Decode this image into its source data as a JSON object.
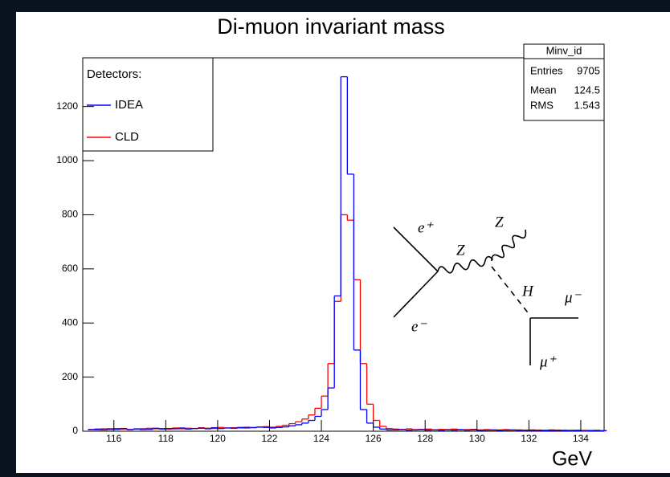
{
  "chart_data": {
    "type": "histogram",
    "title": "Di-muon invariant mass",
    "x_label": "GeV",
    "bins": [
      115,
      115.25,
      115.5,
      115.75,
      116,
      116.25,
      116.5,
      116.75,
      117,
      117.25,
      117.5,
      117.75,
      118,
      118.25,
      118.5,
      118.75,
      119,
      119.25,
      119.5,
      119.75,
      120,
      120.25,
      120.5,
      120.75,
      121,
      121.25,
      121.5,
      121.75,
      122,
      122.25,
      122.5,
      122.75,
      123,
      123.25,
      123.5,
      123.75,
      124,
      124.25,
      124.5,
      124.75,
      125,
      125.25,
      125.5,
      125.75,
      126,
      126.25,
      126.5,
      126.75,
      127,
      127.25,
      127.5,
      127.75,
      128,
      128.25,
      128.5,
      128.75,
      129,
      129.25,
      129.5,
      129.75,
      130,
      130.25,
      130.5,
      130.75,
      131,
      131.25,
      131.5,
      131.75,
      132,
      132.25,
      132.5,
      132.75,
      133,
      133.25,
      133.5,
      133.75,
      134,
      134.25,
      134.5,
      134.75,
      135
    ],
    "series": [
      {
        "name": "IDEA",
        "color": "#0000ff",
        "values": [
          6,
          8,
          5,
          9,
          7,
          10,
          6,
          8,
          9,
          7,
          11,
          8,
          10,
          9,
          12,
          8,
          10,
          11,
          9,
          13,
          10,
          12,
          11,
          14,
          12,
          13,
          15,
          14,
          12,
          14,
          16,
          20,
          24,
          30,
          40,
          55,
          80,
          160,
          500,
          1310,
          950,
          300,
          80,
          30,
          15,
          8,
          5,
          5,
          6,
          4,
          5,
          6,
          4,
          5,
          3,
          5,
          4,
          6,
          4,
          5,
          3,
          4,
          5,
          3,
          4,
          5,
          3,
          4,
          3,
          4,
          2,
          3,
          4,
          2,
          3,
          2,
          3,
          2,
          3,
          2
        ]
      },
      {
        "name": "CLD",
        "color": "#ff0000",
        "values": [
          7,
          5,
          9,
          6,
          10,
          8,
          7,
          9,
          6,
          11,
          9,
          10,
          8,
          12,
          9,
          11,
          10,
          13,
          11,
          10,
          14,
          12,
          13,
          12,
          15,
          14,
          16,
          17,
          15,
          18,
          22,
          28,
          35,
          45,
          60,
          85,
          130,
          250,
          480,
          800,
          780,
          560,
          250,
          100,
          40,
          18,
          10,
          8,
          7,
          9,
          6,
          7,
          8,
          5,
          7,
          6,
          8,
          5,
          6,
          7,
          5,
          6,
          4,
          5,
          6,
          4,
          5,
          4,
          5,
          3,
          4,
          5,
          3,
          4,
          3,
          4,
          2,
          3,
          3,
          2
        ]
      }
    ],
    "xlim": [
      114.8,
      134.9
    ],
    "ylim": [
      0,
      1380
    ],
    "xticks": [
      116,
      118,
      120,
      122,
      124,
      126,
      128,
      130,
      132,
      134
    ],
    "yticks": [
      0,
      200,
      400,
      600,
      800,
      1000,
      1200
    ],
    "legend_title": "Detectors:",
    "stats": {
      "title": "Minv_id",
      "rows": [
        [
          "Entries",
          9705
        ],
        [
          "Mean",
          124.5
        ],
        [
          "RMS",
          1.543
        ]
      ]
    },
    "annotations": [
      "e⁺",
      "e⁻",
      "Z",
      "Z",
      "H",
      "μ⁻",
      "μ⁺"
    ]
  }
}
